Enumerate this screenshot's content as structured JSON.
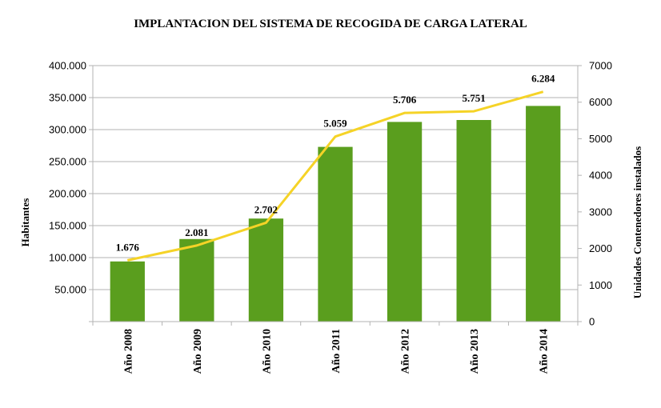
{
  "chart_data": {
    "type": "bar",
    "title": "IMPLANTACION DEL SISTEMA DE RECOGIDA DE CARGA LATERAL",
    "xlabel": "",
    "ylabel": "Habitantes",
    "y2label": "Unidades Contenedores instalados",
    "categories": [
      "Año 2008",
      "Año 2009",
      "Año 2010",
      "Año 2011",
      "Año 2012",
      "Año 2013",
      "Año 2014"
    ],
    "ylim": [
      0,
      400000
    ],
    "y_ticks": [
      "50.000",
      "100.000",
      "150.000",
      "200.000",
      "250.000",
      "300.000",
      "350.000",
      "400.000"
    ],
    "y_tick_values": [
      50000,
      100000,
      150000,
      200000,
      250000,
      300000,
      350000,
      400000
    ],
    "y2lim": [
      0,
      7000
    ],
    "y2_ticks": [
      "0",
      "1000",
      "2000",
      "3000",
      "4000",
      "5000",
      "6000",
      "7000"
    ],
    "y2_tick_values": [
      0,
      1000,
      2000,
      3000,
      4000,
      5000,
      6000,
      7000
    ],
    "grid": true,
    "series": [
      {
        "type": "bar",
        "axis": "left",
        "color": "#5a9e1e",
        "values": [
          94000,
          129000,
          161000,
          273000,
          312000,
          315000,
          337000
        ]
      },
      {
        "type": "line",
        "axis": "right",
        "color": "#f5d327",
        "values": [
          1676,
          2081,
          2702,
          5059,
          5706,
          5751,
          6284
        ],
        "labels": [
          "1.676",
          "2.081",
          "2.702",
          "5.059",
          "5.706",
          "5.751",
          "6.284"
        ]
      }
    ]
  }
}
